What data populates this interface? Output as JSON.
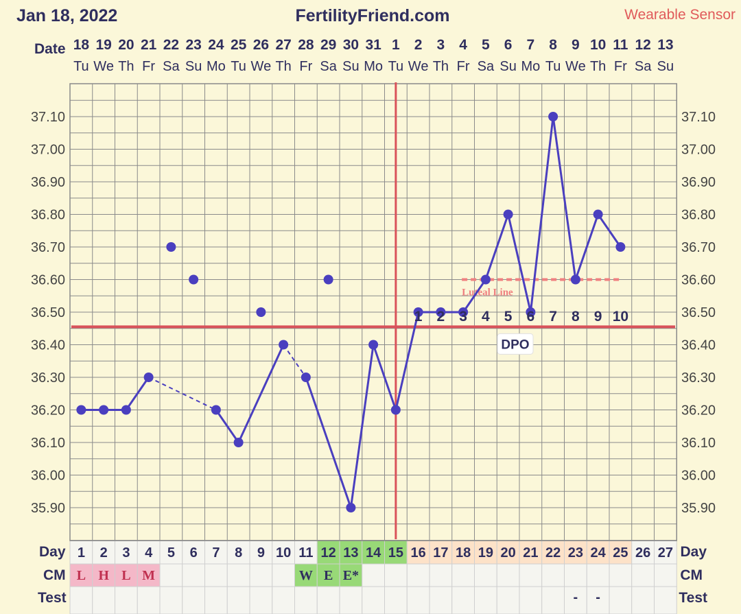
{
  "header": {
    "date": "Jan 18, 2022",
    "site": "FertilityFriend.com",
    "sensor": "Wearable Sensor"
  },
  "labels": {
    "date_row": "Date",
    "day_row": "Day",
    "cm_row": "CM",
    "test_row": "Test",
    "luteal_line": "Luteal Line",
    "dpo": "DPO"
  },
  "colors": {
    "background": "#fbf7d9",
    "series": "#4a3fbf",
    "coverline": "#d9525a",
    "luteal": "#f08080",
    "grid": "#8a8a8a",
    "menses_cell": "#f4b8c8",
    "fertile_cell": "#98d977",
    "post_ov_cell": "#fde2c8"
  },
  "chart_data": {
    "type": "line",
    "dates": [
      "18",
      "19",
      "20",
      "21",
      "22",
      "23",
      "24",
      "25",
      "26",
      "27",
      "28",
      "29",
      "30",
      "31",
      "1",
      "2",
      "3",
      "4",
      "5",
      "6",
      "7",
      "8",
      "9",
      "10",
      "11",
      "12",
      "13"
    ],
    "weekdays": [
      "Tu",
      "We",
      "Th",
      "Fr",
      "Sa",
      "Su",
      "Mo",
      "Tu",
      "We",
      "Th",
      "Fr",
      "Sa",
      "Su",
      "Mo",
      "Tu",
      "We",
      "Th",
      "Fr",
      "Sa",
      "Su",
      "Mo",
      "Tu",
      "We",
      "Th",
      "Fr",
      "Sa",
      "Su"
    ],
    "cycle_days": [
      "1",
      "2",
      "3",
      "4",
      "5",
      "6",
      "7",
      "8",
      "9",
      "10",
      "11",
      "12",
      "13",
      "14",
      "15",
      "16",
      "17",
      "18",
      "19",
      "20",
      "21",
      "22",
      "23",
      "24",
      "25",
      "26",
      "27"
    ],
    "ylim": [
      35.83,
      37.2
    ],
    "yticks": [
      "37.10",
      "37.00",
      "36.90",
      "36.80",
      "36.70",
      "36.60",
      "36.50",
      "36.40",
      "36.30",
      "36.20",
      "36.10",
      "36.00",
      "35.90"
    ],
    "temperatures": [
      36.2,
      36.2,
      36.2,
      36.3,
      36.7,
      36.6,
      36.2,
      36.1,
      36.5,
      36.4,
      36.3,
      36.6,
      35.9,
      36.4,
      36.2,
      36.5,
      36.5,
      36.5,
      36.6,
      36.8,
      36.5,
      37.1,
      36.6,
      36.8,
      36.7,
      null,
      null
    ],
    "excluded_points": [
      5,
      6,
      9,
      12
    ],
    "dashed_segments": [
      [
        4,
        7
      ],
      [
        10,
        11
      ]
    ],
    "coverline": 36.455,
    "ovulation_day": 15,
    "luteal_line": {
      "value": 36.6,
      "from_day": 18,
      "to_day": 25
    },
    "dpo_labels": [
      "1",
      "2",
      "3",
      "4",
      "5",
      "6",
      "7",
      "8",
      "9",
      "10"
    ],
    "cervical_mucus": [
      "L",
      "H",
      "L",
      "M",
      "",
      "",
      "",
      "",
      "",
      "",
      "W",
      "E",
      "E*",
      "",
      "",
      "",
      "",
      "",
      "",
      "",
      "",
      "",
      "",
      "",
      "",
      "",
      ""
    ],
    "test": [
      "",
      "",
      "",
      "",
      "",
      "",
      "",
      "",
      "",
      "",
      "",
      "",
      "",
      "",
      "",
      "",
      "",
      "",
      "",
      "",
      "",
      "",
      "-",
      "-",
      "",
      "",
      ""
    ],
    "grid": true
  }
}
